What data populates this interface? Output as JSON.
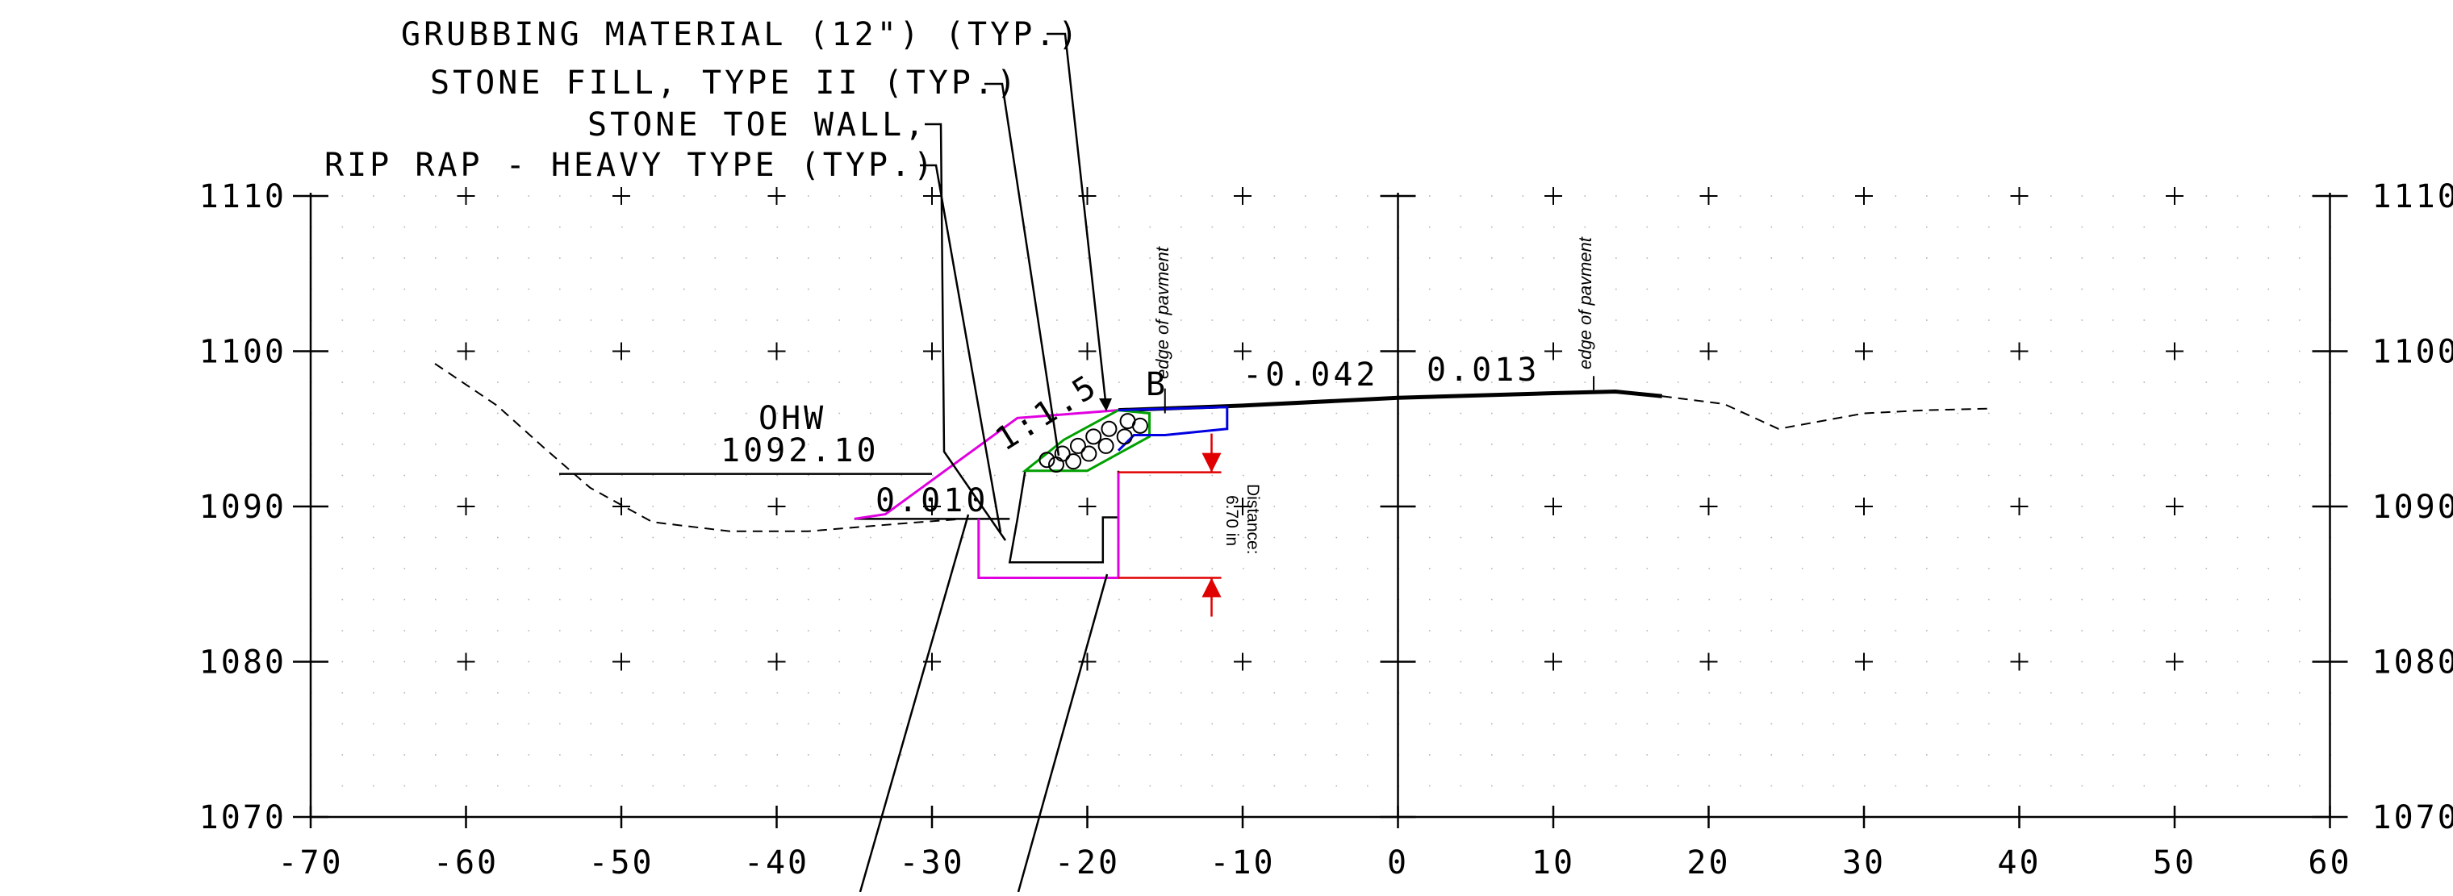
{
  "title": "",
  "annotations": {
    "grubbing": "GRUBBING MATERIAL (12\") (TYP.)",
    "stone_fill": "STONE FILL, TYPE II (TYP.)",
    "toe_wall": "STONE TOE WALL,",
    "rip_rap": "RIP RAP -  HEAVY TYPE (TYP.)",
    "ohw_label": "OHW",
    "ohw_elev": "1092.10",
    "slope_ratio": "1:1.5",
    "grade_left": "-0.042",
    "grade_right": "0.013",
    "water_slope": "0.010",
    "edge_left": "edge of pavment",
    "edge_right": "edge of pavment",
    "distance_label": "Distance:",
    "distance_value": "6.70 in",
    "mark": "B"
  },
  "colors": {
    "grid": "#b0b0b0",
    "existing": "#000000",
    "rip_rap": "#e000e0",
    "stone_fill": "#00a000",
    "subbase": "#0000e0",
    "dimension": "#e00000"
  },
  "chart_data": {
    "type": "cross-section",
    "x_ticks": [
      -70,
      -60,
      -50,
      -40,
      -30,
      -20,
      -10,
      0,
      10,
      20,
      30,
      40,
      50,
      60
    ],
    "y_ticks": [
      1070,
      1080,
      1090,
      1100,
      1110
    ],
    "x_range": [
      -70,
      60
    ],
    "y_range": [
      1070,
      1110
    ],
    "existing_ground": [
      [
        -62,
        1099.2
      ],
      [
        -58,
        1096.5
      ],
      [
        -55,
        1093.8
      ],
      [
        -52,
        1091.2
      ],
      [
        -48,
        1089.0
      ],
      [
        -43,
        1088.4
      ],
      [
        -38,
        1088.4
      ],
      [
        -32,
        1088.9
      ],
      [
        -28,
        1089.2
      ]
    ],
    "existing_right": [
      [
        17,
        1097.1
      ],
      [
        21,
        1096.6
      ],
      [
        24.5,
        1095.0
      ],
      [
        30,
        1096.0
      ],
      [
        34,
        1096.2
      ],
      [
        38,
        1096.3
      ]
    ],
    "finished_grade": [
      [
        -18,
        1096.2
      ],
      [
        -10,
        1096.5
      ],
      [
        0,
        1097.0
      ],
      [
        10,
        1097.3
      ],
      [
        14,
        1097.4
      ],
      [
        17,
        1097.1
      ]
    ],
    "ohw_line": [
      [
        -54,
        1092.1
      ],
      [
        -30,
        1092.1
      ]
    ],
    "rip_rap_outline": [
      [
        -35,
        1089.2
      ],
      [
        -33,
        1089.5
      ],
      [
        -24.5,
        1095.7
      ],
      [
        -18,
        1096.2
      ]
    ],
    "rip_rap_bottom": [
      [
        -27,
        1089.2
      ],
      [
        -27,
        1085.4
      ],
      [
        -18,
        1085.4
      ],
      [
        -18,
        1092.2
      ]
    ],
    "water_line": [
      [
        -35,
        1089.2
      ],
      [
        -25,
        1089.2
      ]
    ],
    "stone_fill_outline": [
      [
        -24,
        1092.3
      ],
      [
        -21.5,
        1094.3
      ],
      [
        -18,
        1096.2
      ],
      [
        -16,
        1096.0
      ],
      [
        -16,
        1094.5
      ],
      [
        -20,
        1092.3
      ],
      [
        -24,
        1092.3
      ]
    ],
    "subbase_outline": [
      [
        -18,
        1096.2
      ],
      [
        -11,
        1096.4
      ],
      [
        -11,
        1095.0
      ],
      [
        -15,
        1094.6
      ],
      [
        -17,
        1094.6
      ],
      [
        -18,
        1093.6
      ]
    ],
    "toe_wall": [
      [
        -24,
        1092.3
      ],
      [
        -24.5,
        1089.2
      ],
      [
        -25,
        1086.4
      ],
      [
        -19,
        1086.4
      ],
      [
        -19,
        1089.3
      ],
      [
        -18,
        1089.3
      ],
      [
        -18,
        1092.3
      ]
    ],
    "dimension": {
      "x": -12,
      "top": 1092.2,
      "bottom": 1085.4
    }
  }
}
